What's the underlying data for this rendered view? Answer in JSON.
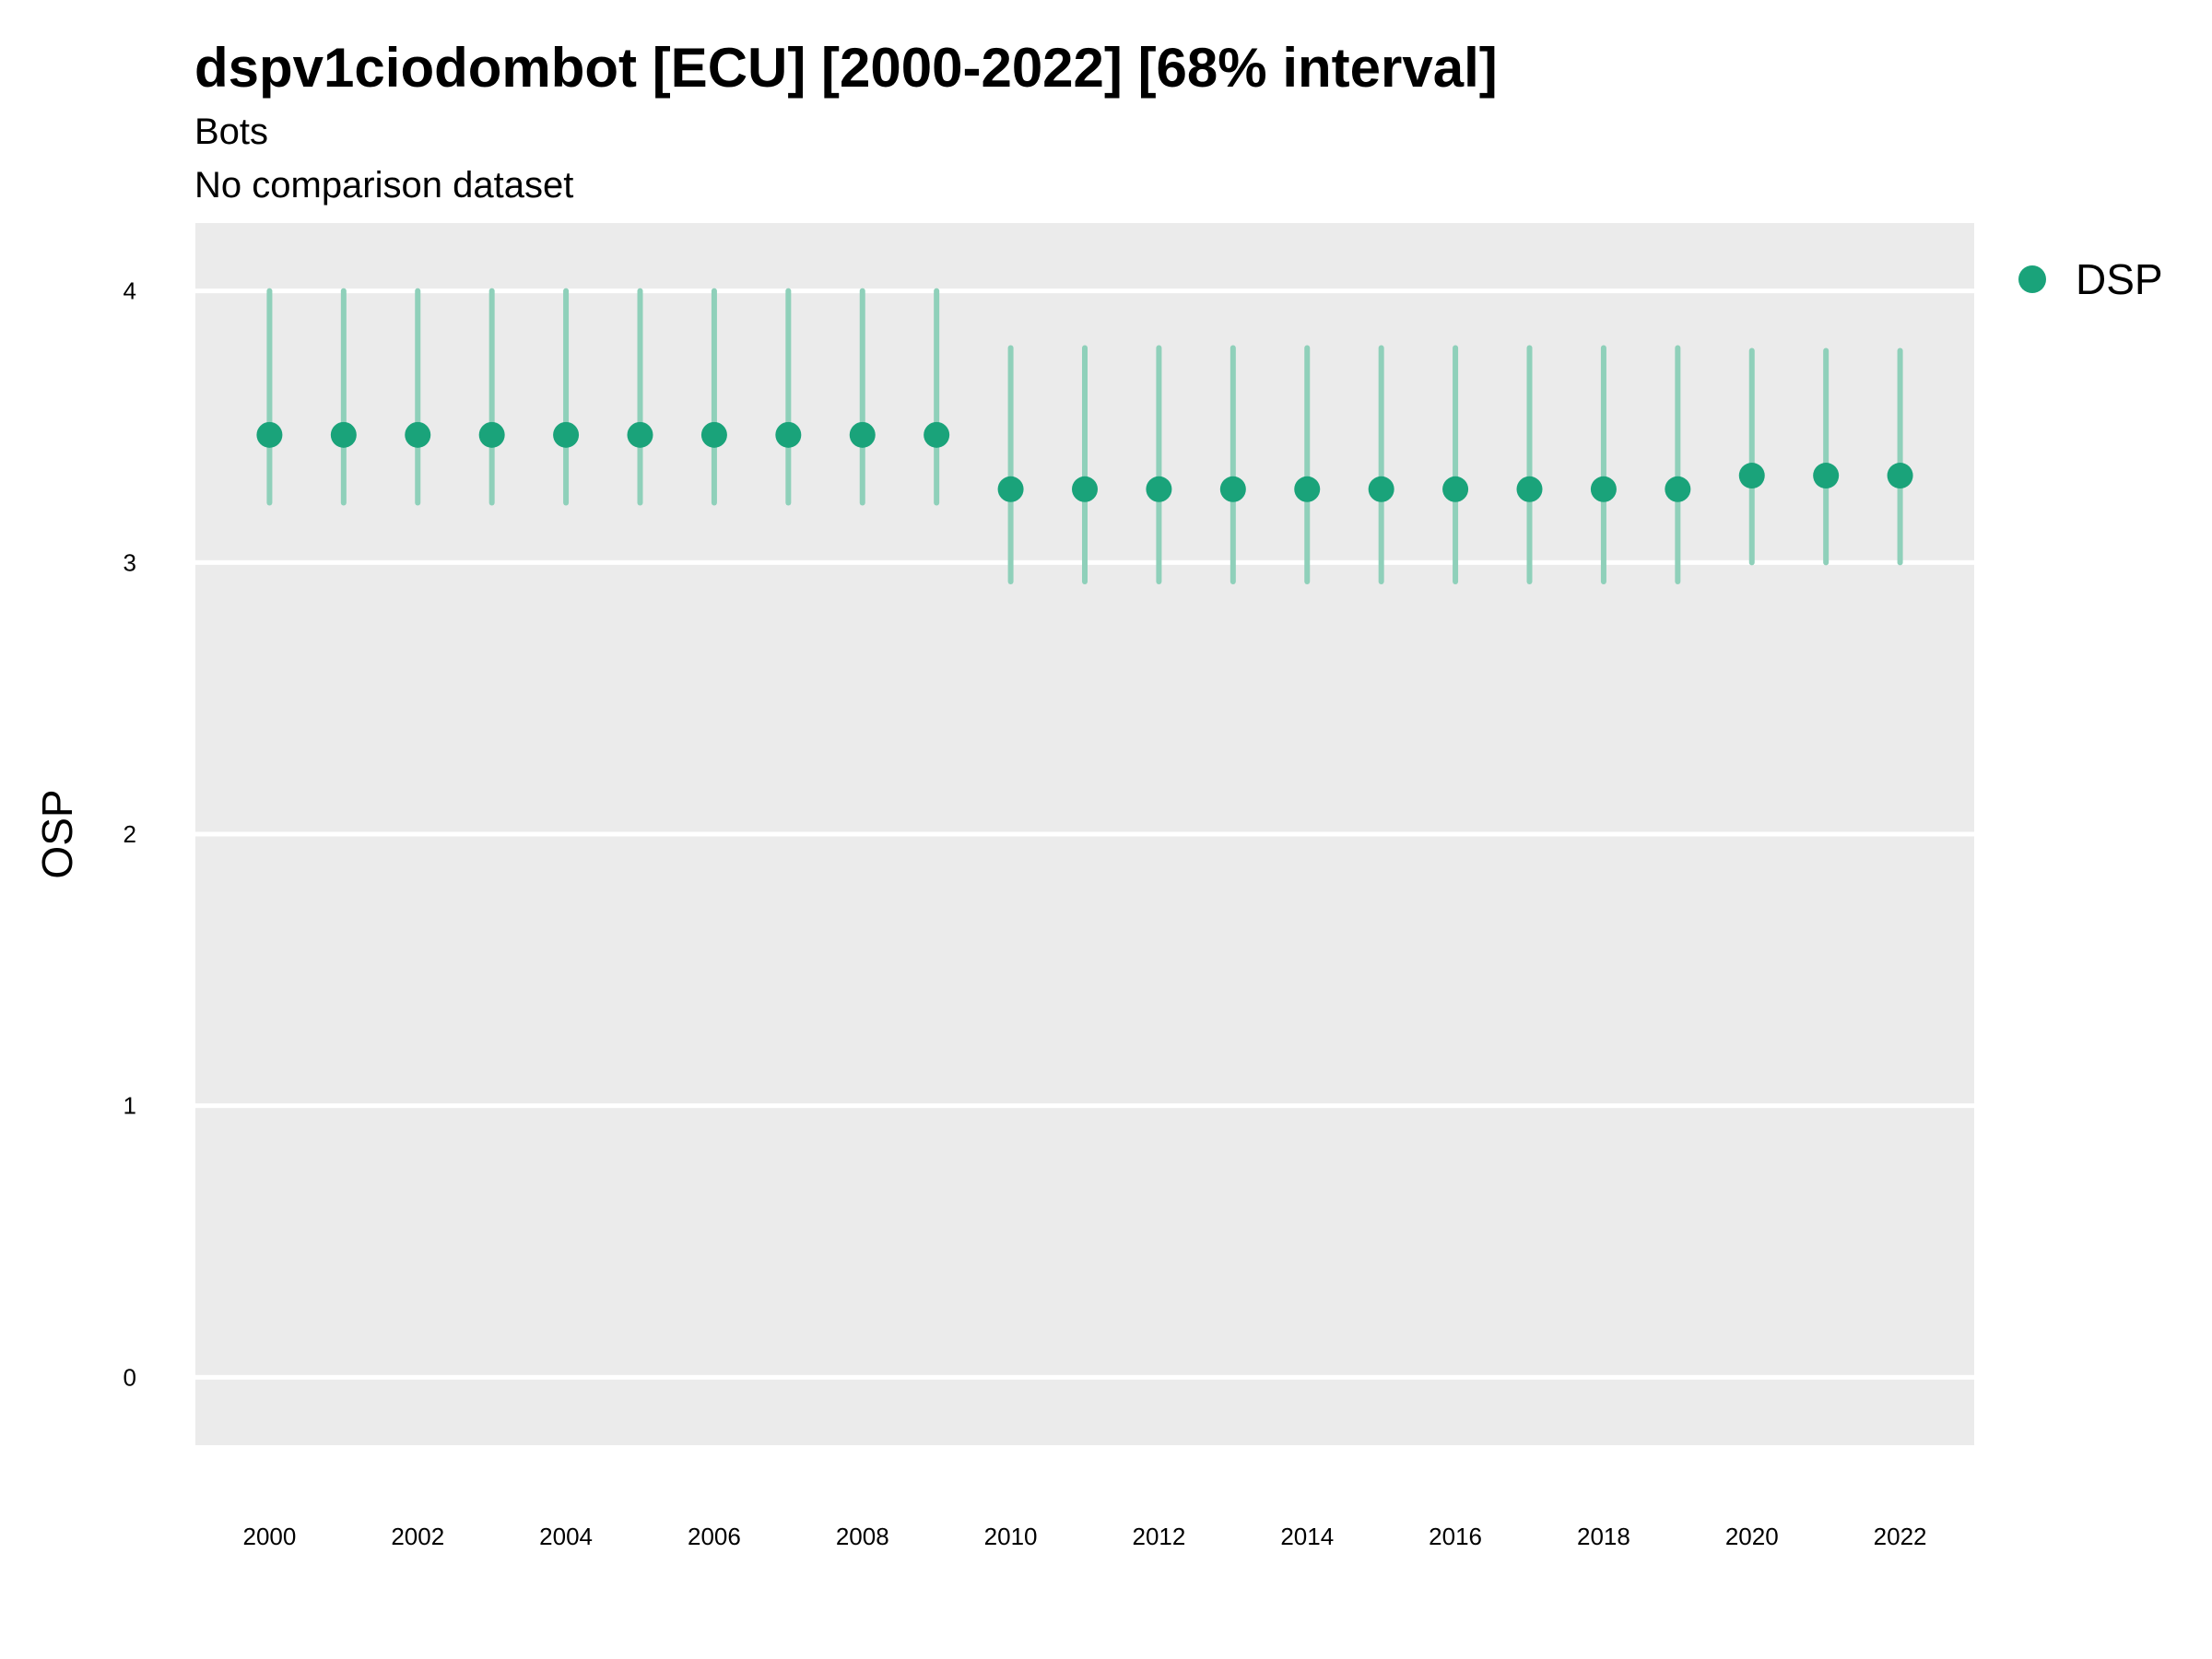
{
  "colors": {
    "panel_background": "#ebebeb",
    "gridline": "#ffffff",
    "series": "#1aa37a",
    "errorbar": "#8fd0ba"
  },
  "chart_data": {
    "type": "scatter",
    "title": "dspv1ciodombot [ECU] [2000-2022] [68% interval]",
    "subtitle_lines": [
      "Bots",
      "No comparison dataset"
    ],
    "xlabel": "",
    "ylabel": "OSP",
    "ylim": [
      -0.25,
      4.25
    ],
    "xlim": [
      1999,
      2023
    ],
    "y_ticks": [
      "0",
      "1",
      "2",
      "3",
      "4"
    ],
    "x_ticks": [
      "2000",
      "2002",
      "2004",
      "2006",
      "2008",
      "2010",
      "2012",
      "2014",
      "2016",
      "2018",
      "2020",
      "2022"
    ],
    "grid": true,
    "legend": {
      "position": "right",
      "entries": [
        "DSP"
      ]
    },
    "series": [
      {
        "name": "DSP",
        "x": [
          2000,
          2001,
          2002,
          2003,
          2004,
          2005,
          2006,
          2007,
          2008,
          2009,
          2010,
          2011,
          2012,
          2013,
          2014,
          2015,
          2016,
          2017,
          2018,
          2019,
          2020,
          2021,
          2022
        ],
        "y": [
          3.47,
          3.47,
          3.47,
          3.47,
          3.47,
          3.47,
          3.47,
          3.47,
          3.47,
          3.47,
          3.27,
          3.27,
          3.27,
          3.27,
          3.27,
          3.27,
          3.27,
          3.27,
          3.27,
          3.27,
          3.32,
          3.32,
          3.32
        ],
        "lower": [
          3.22,
          3.22,
          3.22,
          3.22,
          3.22,
          3.22,
          3.22,
          3.22,
          3.22,
          3.22,
          2.93,
          2.93,
          2.93,
          2.93,
          2.93,
          2.93,
          2.93,
          2.93,
          2.93,
          2.93,
          3.0,
          3.0,
          3.0
        ],
        "upper": [
          4.0,
          4.0,
          4.0,
          4.0,
          4.0,
          4.0,
          4.0,
          4.0,
          4.0,
          4.0,
          3.79,
          3.79,
          3.79,
          3.79,
          3.79,
          3.79,
          3.79,
          3.79,
          3.79,
          3.79,
          3.78,
          3.78,
          3.78
        ]
      }
    ]
  }
}
